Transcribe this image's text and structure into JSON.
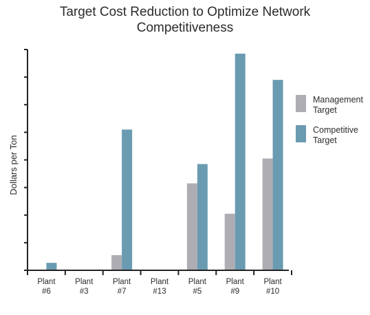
{
  "chart_data": {
    "type": "bar",
    "title_lines": [
      "Target Cost Reduction to Optimize Network",
      "Competitiveness"
    ],
    "ylabel": "Dollars per Ton",
    "xlabel": "",
    "categories": [
      [
        "Plant",
        "#6"
      ],
      [
        "Plant",
        "#3"
      ],
      [
        "Plant",
        "#7"
      ],
      [
        "Plant",
        "#13"
      ],
      [
        "Plant",
        "#5"
      ],
      [
        "Plant",
        "#9"
      ],
      [
        "Plant",
        "#10"
      ]
    ],
    "ylim": [
      0,
      8
    ],
    "y_ticks": 8,
    "y_tick_labels_shown": false,
    "series": [
      {
        "name": "Management Target",
        "color": "#adadb3",
        "values": [
          0,
          0,
          0.55,
          0,
          3.15,
          2.05,
          4.05
        ]
      },
      {
        "name": "Competitive Target",
        "color": "#6b9bb1",
        "values": [
          0.27,
          0,
          5.1,
          0,
          3.85,
          7.85,
          6.9
        ]
      }
    ],
    "legend": {
      "position": "right",
      "entries": [
        {
          "lines": [
            "Management",
            "Target"
          ],
          "color": "#adadb3"
        },
        {
          "lines": [
            "Competitive",
            "Target"
          ],
          "color": "#6b9bb1"
        }
      ]
    },
    "grid": false
  }
}
